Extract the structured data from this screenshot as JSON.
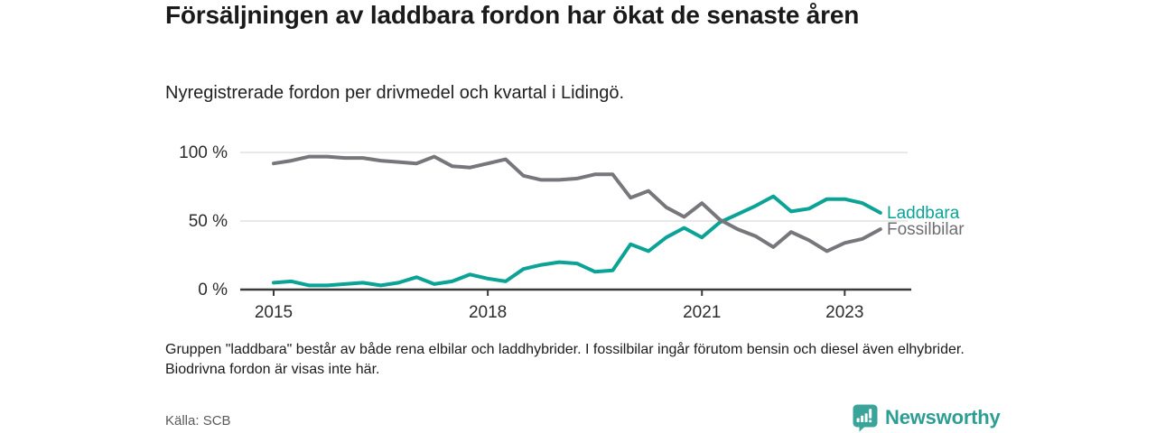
{
  "header": {
    "title": "Försäljningen av laddbara fordon har ökat de senaste åren",
    "subtitle": "Nyregistrerade fordon per drivmedel och kvartal i Lidingö."
  },
  "chart_data": {
    "type": "line",
    "title": "Försäljningen av laddbara fordon har ökat de senaste åren",
    "subtitle": "Nyregistrerade fordon per drivmedel och kvartal i Lidingö.",
    "x": [
      "2015 Q1",
      "2015 Q2",
      "2015 Q3",
      "2015 Q4",
      "2016 Q1",
      "2016 Q2",
      "2016 Q3",
      "2016 Q4",
      "2017 Q1",
      "2017 Q2",
      "2017 Q3",
      "2017 Q4",
      "2018 Q1",
      "2018 Q2",
      "2018 Q3",
      "2018 Q4",
      "2019 Q1",
      "2019 Q2",
      "2019 Q3",
      "2019 Q4",
      "2020 Q1",
      "2020 Q2",
      "2020 Q3",
      "2020 Q4",
      "2021 Q1",
      "2021 Q2",
      "2021 Q3",
      "2021 Q4",
      "2022 Q1",
      "2022 Q2",
      "2022 Q3",
      "2022 Q4",
      "2023 Q1",
      "2023 Q2",
      "2023 Q3"
    ],
    "unit": "%",
    "series": [
      {
        "name": "Laddbara",
        "color": "#0aa396",
        "label_color": "#0aa396",
        "values": [
          5,
          6,
          3,
          3,
          4,
          5,
          3,
          5,
          9,
          4,
          6,
          11,
          8,
          6,
          15,
          18,
          20,
          19,
          13,
          14,
          33,
          28,
          38,
          45,
          38,
          49,
          55,
          61,
          68,
          57,
          59,
          66,
          66,
          63,
          56
        ]
      },
      {
        "name": "Fossilbilar",
        "color": "#76767b",
        "label_color": "#6e6e73",
        "values": [
          92,
          94,
          97,
          97,
          96,
          96,
          94,
          93,
          92,
          97,
          90,
          89,
          92,
          95,
          83,
          80,
          80,
          81,
          84,
          84,
          67,
          72,
          60,
          53,
          63,
          51,
          44,
          39,
          31,
          42,
          36,
          28,
          34,
          37,
          44
        ]
      }
    ],
    "ylim": [
      0,
      100
    ],
    "yticks": [
      {
        "value": 100,
        "label": "100 %"
      },
      {
        "value": 50,
        "label": "50 %"
      },
      {
        "value": 0,
        "label": "0 %"
      }
    ],
    "xticks": [
      {
        "index": 0,
        "label": "2015"
      },
      {
        "index": 12,
        "label": "2018"
      },
      {
        "index": 24,
        "label": "2021"
      },
      {
        "index": 32,
        "label": "2023"
      }
    ],
    "grid": "horizontal",
    "legend_position": "line-end-labels",
    "colors": {
      "gridline": "#d9d9d9",
      "axis": "#3a3a3a",
      "tick_label": "#2d2d2d"
    }
  },
  "footer": {
    "note": "Gruppen \"laddbara\" består av både rena elbilar och laddhybrider. I fossilbilar ingår förutom bensin och diesel även elhybrider. Biodrivna fordon är visas inte här.",
    "source": "Källa: SCB",
    "brand": "Newsworthy",
    "brand_color": "#2e9d94"
  }
}
